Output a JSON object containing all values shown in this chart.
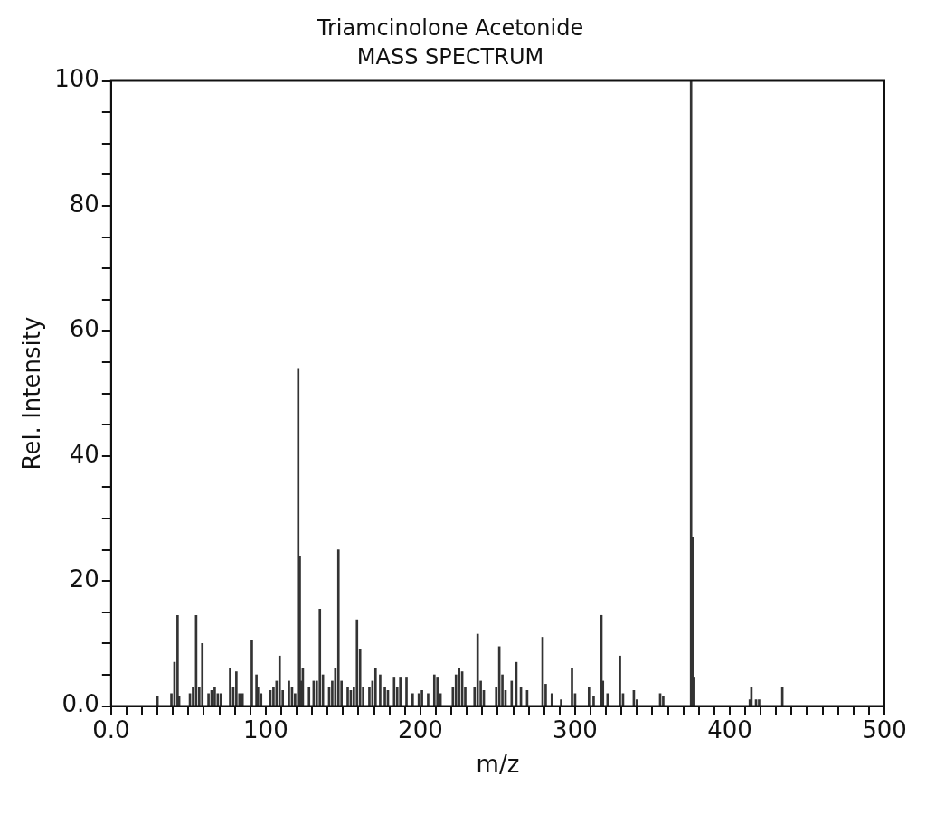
{
  "chart_data": {
    "type": "bar",
    "title": "Triamcinolone Acetonide",
    "subtitle": "MASS SPECTRUM",
    "xlabel": "m/z",
    "ylabel": "Rel. Intensity",
    "x": [
      30,
      39,
      41,
      43,
      44,
      51,
      53,
      55,
      57,
      59,
      63,
      65,
      67,
      69,
      71,
      77,
      79,
      81,
      83,
      85,
      91,
      94,
      95,
      97,
      103,
      105,
      107,
      109,
      111,
      115,
      117,
      119,
      121,
      122,
      123,
      124,
      128,
      131,
      133,
      135,
      137,
      141,
      143,
      145,
      147,
      149,
      153,
      155,
      157,
      159,
      161,
      163,
      167,
      169,
      171,
      174,
      177,
      179,
      183,
      185,
      187,
      191,
      195,
      199,
      201,
      205,
      209,
      211,
      213,
      221,
      223,
      225,
      227,
      229,
      235,
      237,
      239,
      241,
      249,
      251,
      253,
      255,
      259,
      262,
      265,
      269,
      279,
      281,
      285,
      291,
      298,
      300,
      309,
      312,
      317,
      318,
      321,
      329,
      331,
      338,
      340,
      355,
      357,
      375,
      376,
      377,
      413,
      414,
      417,
      419,
      434
    ],
    "series": [
      {
        "color": "#333333",
        "values": [
          1.5,
          2,
          7,
          14.5,
          1.5,
          2,
          3,
          14.5,
          3,
          10,
          2,
          2.5,
          3,
          2,
          2,
          6,
          3,
          5.5,
          2,
          2,
          10.5,
          5,
          3,
          2,
          2.5,
          3,
          4,
          8,
          2.5,
          4,
          3,
          2,
          54,
          24,
          4,
          6,
          3,
          4,
          4,
          15.5,
          5,
          3,
          4,
          6,
          25,
          4,
          3,
          2.5,
          3,
          13.8,
          9,
          3,
          3,
          4,
          6,
          5,
          3,
          2.5,
          4.5,
          3,
          4.5,
          4.5,
          2,
          2,
          2.5,
          2,
          5,
          4.5,
          2,
          3,
          5,
          6,
          5.5,
          3,
          3,
          11.5,
          4,
          2.5,
          3,
          9.5,
          5,
          2.5,
          4,
          7,
          3,
          2.5,
          11,
          3.5,
          2,
          1,
          6,
          2,
          3,
          1.5,
          14.5,
          4,
          2,
          8,
          2,
          2.5,
          1,
          2,
          1.5,
          100,
          27,
          4.5,
          1,
          3,
          1,
          1,
          3
        ]
      }
    ],
    "xlim": [
      0,
      500
    ],
    "ylim": [
      0,
      100
    ],
    "xticks": [
      {
        "value": 0,
        "label": "0.0"
      },
      {
        "value": 10,
        "label": null
      },
      {
        "value": 20,
        "label": null
      },
      {
        "value": 30,
        "label": null
      },
      {
        "value": 40,
        "label": null
      },
      {
        "value": 50,
        "label": null
      },
      {
        "value": 60,
        "label": null
      },
      {
        "value": 70,
        "label": null
      },
      {
        "value": 80,
        "label": null
      },
      {
        "value": 90,
        "label": null
      },
      100,
      {
        "value": 110,
        "label": null
      },
      {
        "value": 120,
        "label": null
      },
      {
        "value": 130,
        "label": null
      },
      {
        "value": 140,
        "label": null
      },
      {
        "value": 150,
        "label": null
      },
      {
        "value": 160,
        "label": null
      },
      {
        "value": 170,
        "label": null
      },
      {
        "value": 180,
        "label": null
      },
      {
        "value": 190,
        "label": null
      },
      200,
      {
        "value": 210,
        "label": null
      },
      {
        "value": 220,
        "label": null
      },
      {
        "value": 230,
        "label": null
      },
      {
        "value": 240,
        "label": null
      },
      {
        "value": 250,
        "label": null
      },
      {
        "value": 260,
        "label": null
      },
      {
        "value": 270,
        "label": null
      },
      {
        "value": 280,
        "label": null
      },
      {
        "value": 290,
        "label": null
      },
      300,
      {
        "value": 310,
        "label": null
      },
      {
        "value": 320,
        "label": null
      },
      {
        "value": 330,
        "label": null
      },
      {
        "value": 340,
        "label": null
      },
      {
        "value": 350,
        "label": null
      },
      {
        "value": 360,
        "label": null
      },
      {
        "value": 370,
        "label": null
      },
      {
        "value": 380,
        "label": null
      },
      {
        "value": 390,
        "label": null
      },
      400,
      {
        "value": 410,
        "label": null
      },
      {
        "value": 420,
        "label": null
      },
      {
        "value": 430,
        "label": null
      },
      {
        "value": 440,
        "label": null
      },
      {
        "value": 450,
        "label": null
      },
      {
        "value": 460,
        "label": null
      },
      {
        "value": 470,
        "label": null
      },
      {
        "value": 480,
        "label": null
      },
      {
        "value": 490,
        "label": null
      },
      500
    ],
    "yticks": [
      {
        "value": 0,
        "label": "0.0"
      },
      {
        "value": 5,
        "label": null
      },
      {
        "value": 10,
        "label": null
      },
      {
        "value": 15,
        "label": null
      },
      20,
      {
        "value": 25,
        "label": null
      },
      {
        "value": 30,
        "label": null
      },
      {
        "value": 35,
        "label": null
      },
      40,
      {
        "value": 45,
        "label": null
      },
      {
        "value": 50,
        "label": null
      },
      {
        "value": 55,
        "label": null
      },
      60,
      {
        "value": 65,
        "label": null
      },
      {
        "value": 70,
        "label": null
      },
      {
        "value": 75,
        "label": null
      },
      80,
      {
        "value": 85,
        "label": null
      },
      {
        "value": 90,
        "label": null
      },
      {
        "value": 95,
        "label": null
      },
      100
    ],
    "grid": false,
    "legend": false
  }
}
